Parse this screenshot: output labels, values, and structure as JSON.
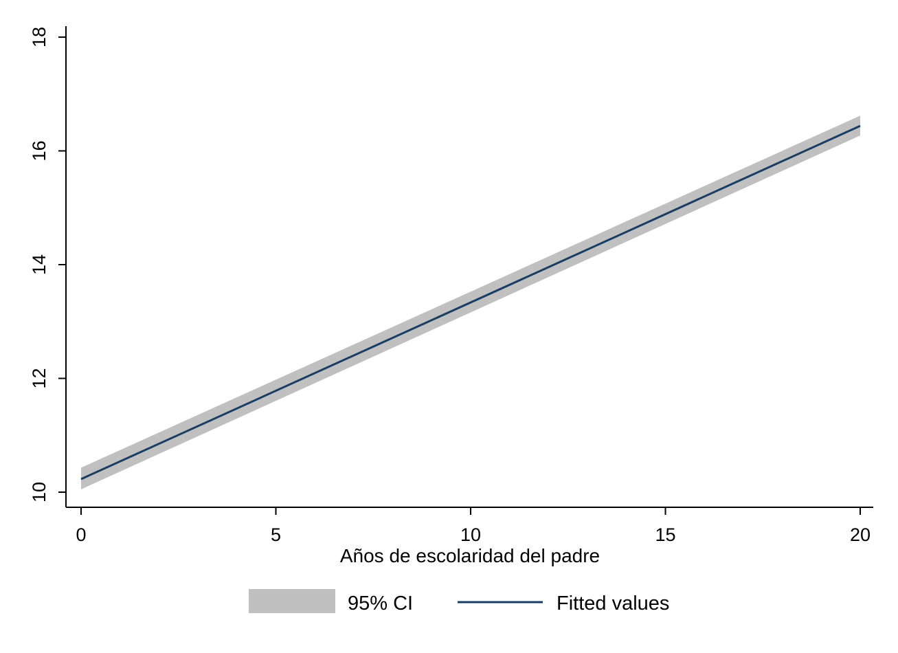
{
  "chart_data": {
    "type": "line",
    "xlabel": "Años de escolaridad del padre",
    "ylabel": "",
    "xlim": [
      0,
      20
    ],
    "ylim": [
      10,
      18
    ],
    "xticks": [
      0,
      5,
      10,
      15,
      20
    ],
    "xtick_labels": [
      "0",
      "5",
      "10",
      "15",
      "20"
    ],
    "yticks": [
      10,
      12,
      14,
      16,
      18
    ],
    "ytick_labels": [
      "10",
      "12",
      "14",
      "16",
      "18"
    ],
    "grid": false,
    "legend_position": "bottom",
    "series": [
      {
        "name": "95% CI",
        "kind": "band",
        "x": [
          0,
          20
        ],
        "lower": [
          10.05,
          16.27
        ],
        "upper": [
          10.43,
          16.62
        ],
        "color": "#c0c0c0"
      },
      {
        "name": "Fitted values",
        "kind": "line",
        "x": [
          0,
          20
        ],
        "y": [
          10.23,
          16.44
        ],
        "color": "#1a3d63"
      }
    ]
  }
}
